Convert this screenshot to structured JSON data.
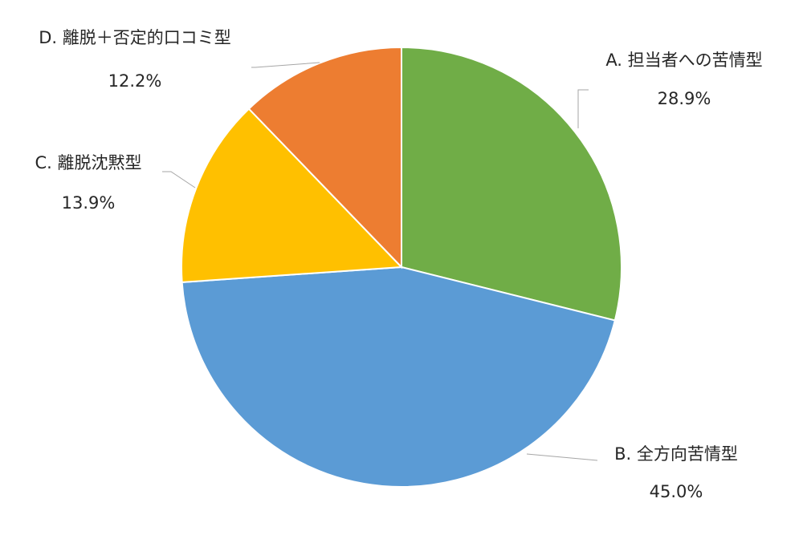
{
  "chart_data": {
    "type": "pie",
    "title": "",
    "start_angle_deg": 0,
    "direction": "clockwise",
    "legend": "none",
    "slices": [
      {
        "label": "A. 担当者への苦情型",
        "value": 28.9,
        "value_label": "28.9%",
        "color": "#70ad47"
      },
      {
        "label": "B. 全方向苦情型",
        "value": 45.0,
        "value_label": "45.0%",
        "color": "#5b9bd5"
      },
      {
        "label": "C. 離脱沈黙型",
        "value": 13.9,
        "value_label": "13.9%",
        "color": "#ffc000"
      },
      {
        "label": "D. 離脱＋否定的口コミ型",
        "value": 12.2,
        "value_label": "12.2%",
        "color": "#ed7d31"
      }
    ]
  }
}
